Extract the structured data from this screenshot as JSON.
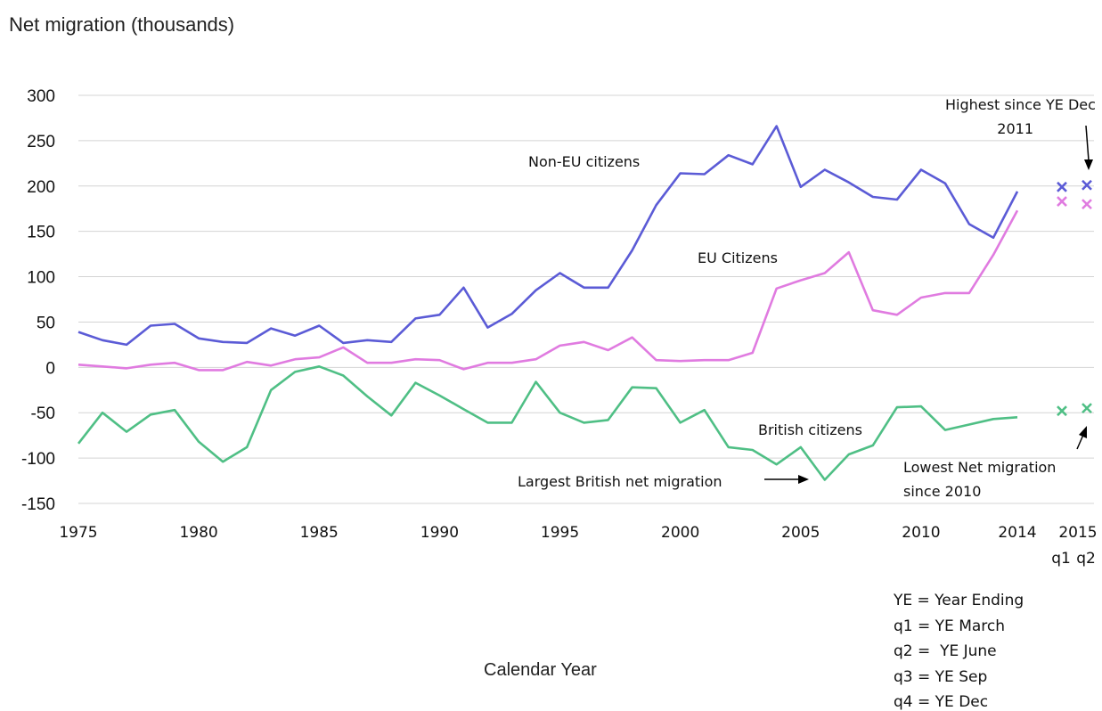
{
  "chart_data": {
    "type": "line",
    "ylabel": "Net migration (thousands)",
    "xlabel": "Calendar Year",
    "ylim": [
      -150,
      300
    ],
    "yticks": [
      300,
      250,
      200,
      150,
      100,
      50,
      0,
      -50,
      -100,
      -150
    ],
    "xlim": [
      1975,
      2014
    ],
    "xticks": [
      1975,
      1980,
      1985,
      1990,
      1995,
      2000,
      2005,
      2010,
      2014
    ],
    "quarter_axis": {
      "year_label": "2015",
      "labels": [
        "q1",
        "q2"
      ]
    },
    "grid": "horizontal",
    "x": [
      1975,
      1976,
      1977,
      1978,
      1979,
      1980,
      1981,
      1982,
      1983,
      1984,
      1985,
      1986,
      1987,
      1988,
      1989,
      1990,
      1991,
      1992,
      1993,
      1994,
      1995,
      1996,
      1997,
      1998,
      1999,
      2000,
      2001,
      2002,
      2003,
      2004,
      2005,
      2006,
      2007,
      2008,
      2009,
      2010,
      2011,
      2012,
      2013,
      2014
    ],
    "series": [
      {
        "name": "Non-EU citizens",
        "color": "#5b5bd6",
        "values": [
          39,
          30,
          25,
          46,
          48,
          32,
          28,
          27,
          43,
          35,
          46,
          27,
          30,
          28,
          54,
          58,
          88,
          44,
          59,
          85,
          104,
          88,
          88,
          129,
          179,
          214,
          213,
          234,
          224,
          266,
          199,
          218,
          204,
          188,
          185,
          218,
          203,
          158,
          143,
          194
        ],
        "quarterly": [
          199,
          201
        ]
      },
      {
        "name": "EU Citizens",
        "color": "#e07be0",
        "values": [
          3,
          1,
          -1,
          3,
          5,
          -3,
          -3,
          6,
          2,
          9,
          11,
          22,
          5,
          5,
          9,
          8,
          -2,
          5,
          5,
          9,
          24,
          28,
          19,
          33,
          8,
          7,
          8,
          8,
          16,
          87,
          96,
          104,
          127,
          63,
          58,
          77,
          82,
          82,
          124,
          173
        ],
        "quarterly": [
          183,
          180
        ]
      },
      {
        "name": "British citizens",
        "color": "#4fbf85",
        "values": [
          -84,
          -50,
          -71,
          -52,
          -47,
          -82,
          -104,
          -88,
          -25,
          -5,
          1,
          -9,
          -32,
          -53,
          -17,
          -31,
          -46,
          -61,
          -61,
          -16,
          -50,
          -61,
          -58,
          -22,
          -23,
          -61,
          -47,
          -88,
          -91,
          -107,
          -88,
          -124,
          -96,
          -86,
          -44,
          -43,
          -69,
          -63,
          -57,
          -55
        ],
        "quarterly": [
          -48,
          -45
        ]
      }
    ],
    "annotations": {
      "highest": "Highest since YE Dec 2011",
      "largest_british": "Largest British net migration",
      "lowest": "Lowest Net migration since 2010"
    },
    "notes": [
      "YE = Year Ending",
      "q1 = YE March",
      "q2 =  YE June",
      "q3 = YE Sep",
      "q4 = YE Dec"
    ]
  }
}
